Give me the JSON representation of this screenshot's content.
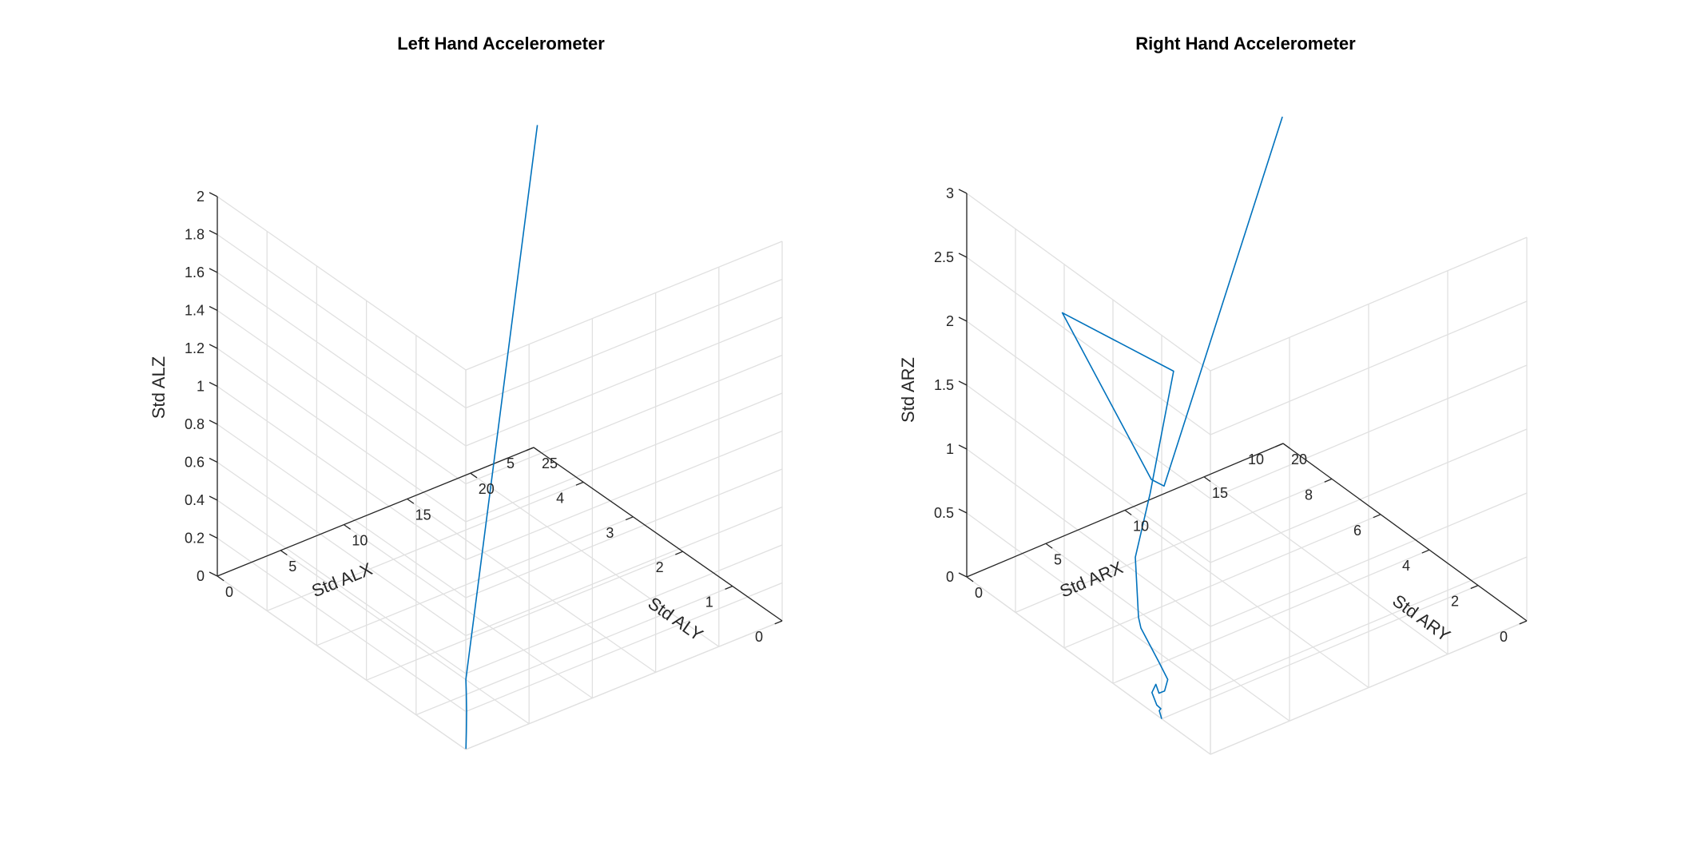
{
  "chart_data": [
    {
      "type": "line3d",
      "title": "Left Hand Accelerometer",
      "xlabel": "Std ALX",
      "ylabel": "Std ALY",
      "zlabel": "Std ALZ",
      "xlim": [
        0,
        25
      ],
      "ylim": [
        0,
        5
      ],
      "zlim": [
        0,
        2
      ],
      "xticks": [
        "0",
        "5",
        "10",
        "15",
        "20",
        "25"
      ],
      "yticks": [
        "0",
        "1",
        "2",
        "3",
        "4",
        "5"
      ],
      "zticks": [
        "0",
        "0.2",
        "0.4",
        "0.6",
        "0.8",
        "1",
        "1.2",
        "1.4",
        "1.6",
        "1.8",
        "2"
      ],
      "grid": true,
      "series": [
        {
          "color": "#0072BD",
          "x": [
            0.05,
            0.2,
            0.3,
            0.35,
            0.4,
            24.9
          ],
          "y": [
            0.01,
            0.04,
            0.06,
            0.08,
            0.1,
            4.9
          ],
          "z": [
            0.0,
            0.08,
            0.18,
            0.28,
            0.34,
            1.72
          ]
        }
      ]
    },
    {
      "type": "line3d",
      "title": "Right Hand Accelerometer",
      "xlabel": "Std ARX",
      "ylabel": "Std ARY",
      "zlabel": "Std ARZ",
      "xlim": [
        0,
        20
      ],
      "ylim": [
        0,
        10
      ],
      "zlim": [
        0,
        3
      ],
      "xticks": [
        "0",
        "5",
        "10",
        "15",
        "20"
      ],
      "yticks": [
        "0",
        "2",
        "4",
        "6",
        "8",
        "10"
      ],
      "zticks": [
        "0",
        "0.5",
        "1",
        "1.5",
        "2",
        "2.5",
        "3"
      ],
      "grid": true,
      "series": [
        {
          "color": "#0072BD",
          "x": [
            0.0,
            0.0,
            0.1,
            0.0,
            0.0,
            0.4,
            0.6,
            0.8,
            1.0,
            0.9,
            1.0,
            1.0,
            0.8,
            2.5,
            12.0,
            4.5,
            1.5,
            2.0,
            19.8
          ],
          "y": [
            2.0,
            2.1,
            2.1,
            2.2,
            2.4,
            2.5,
            2.5,
            2.4,
            2.4,
            2.7,
            3.5,
            3.6,
            3.6,
            4.1,
            9.3,
            9.0,
            3.4,
            3.2,
            9.9
          ],
          "z": [
            0.0,
            0.05,
            0.06,
            0.08,
            0.15,
            0.18,
            0.1,
            0.12,
            0.2,
            0.3,
            0.45,
            0.52,
            1.0,
            1.34,
            1.08,
            1.97,
            1.6,
            1.55,
            2.58
          ]
        }
      ]
    }
  ]
}
